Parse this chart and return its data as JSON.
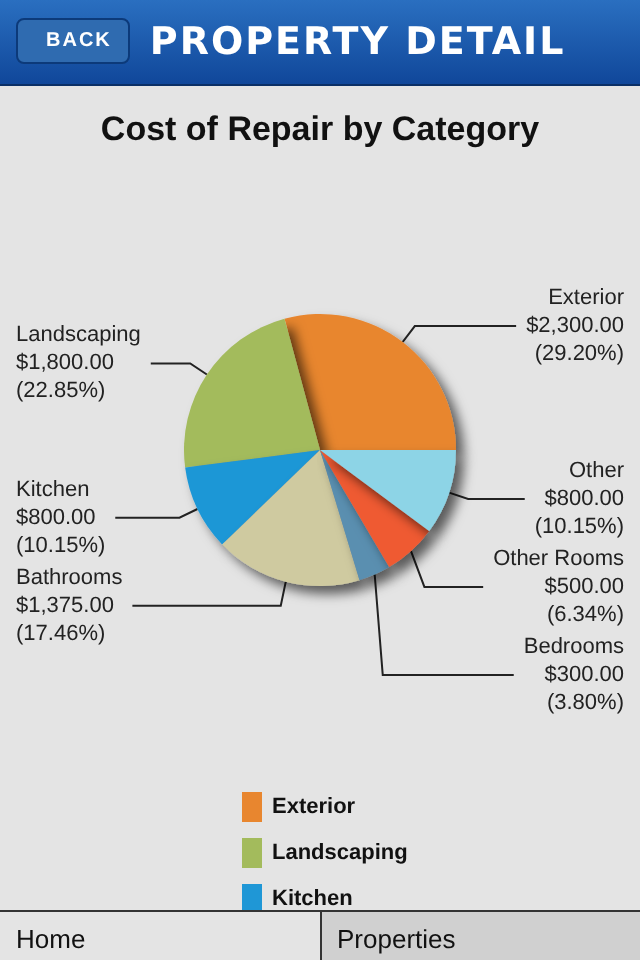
{
  "chart_data": {
    "type": "pie",
    "title": "Cost of Repair by Category",
    "annotations": [
      "BACK",
      "PROPERTY DETAIL",
      "Home",
      "Properties"
    ],
    "categories": [
      "Exterior",
      "Landscaping",
      "Kitchen",
      "Bathrooms",
      "Bedrooms",
      "Other Rooms",
      "Other"
    ],
    "values": [
      2300,
      1800,
      800,
      1375,
      300,
      500,
      800
    ],
    "value_labels": [
      "$2,300.00 (29.20%)",
      "$1,800.00 (22.85%)",
      "$800.00 (10.15%)",
      "$1,375.00 (17.46%)",
      "$300.00 (3.80%)",
      "$500.00 (6.34%)",
      "$800.00 (10.15%)"
    ],
    "colors": [
      "#e8862f",
      "#a3bb5c",
      "#1f97d6",
      "#cfcaa0",
      "#5a8fb0",
      "#ef5a32",
      "#8dd4e6"
    ],
    "legend": "bottom"
  }
}
